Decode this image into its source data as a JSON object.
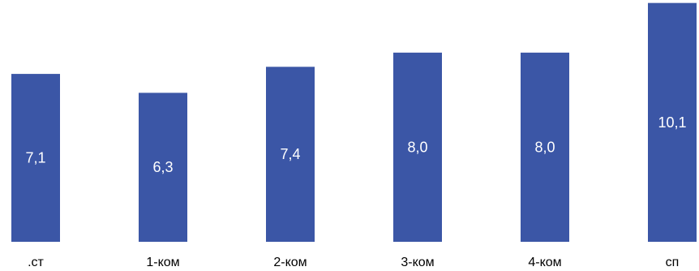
{
  "chart_data": {
    "type": "bar",
    "categories": [
      ".ст",
      "1-ком",
      "2-ком",
      "3-ком",
      "4-ком",
      "сп"
    ],
    "values": [
      7.1,
      6.3,
      7.4,
      8.0,
      8.0,
      10.1
    ],
    "value_labels": [
      "7,1",
      "6,3",
      "7,4",
      "8,0",
      "8,0",
      "10,1"
    ],
    "title": "",
    "xlabel": "",
    "ylabel": "",
    "ylim": [
      0,
      10.5
    ],
    "grid": false,
    "legend": "none",
    "colors": {
      "bar": "#3b56a6",
      "label": "#ffffff",
      "axis_text": "#000000"
    }
  }
}
